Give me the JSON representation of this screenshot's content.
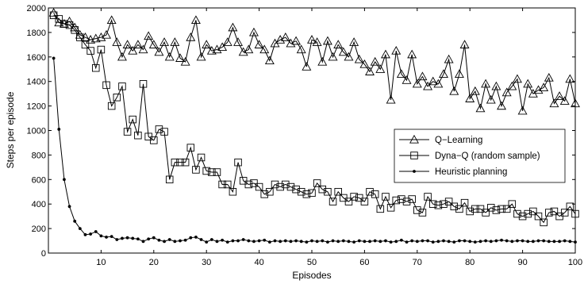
{
  "chart_data": {
    "type": "line",
    "title": "",
    "xlabel": "Episodes",
    "ylabel": "Steps per episode",
    "xlim": [
      0,
      100
    ],
    "ylim": [
      0,
      2000
    ],
    "xticks": [
      10,
      20,
      30,
      40,
      50,
      60,
      70,
      80,
      90,
      100
    ],
    "yticks": [
      0,
      200,
      400,
      600,
      800,
      1000,
      1200,
      1400,
      1600,
      1800,
      2000
    ],
    "grid": false,
    "legend_position": "center-right",
    "x": [
      1,
      2,
      3,
      4,
      5,
      6,
      7,
      8,
      9,
      10,
      11,
      12,
      13,
      14,
      15,
      16,
      17,
      18,
      19,
      20,
      21,
      22,
      23,
      24,
      25,
      26,
      27,
      28,
      29,
      30,
      31,
      32,
      33,
      34,
      35,
      36,
      37,
      38,
      39,
      40,
      41,
      42,
      43,
      44,
      45,
      46,
      47,
      48,
      49,
      50,
      51,
      52,
      53,
      54,
      55,
      56,
      57,
      58,
      59,
      60,
      61,
      62,
      63,
      64,
      65,
      66,
      67,
      68,
      69,
      70,
      71,
      72,
      73,
      74,
      75,
      76,
      77,
      78,
      79,
      80,
      81,
      82,
      83,
      84,
      85,
      86,
      87,
      88,
      89,
      90,
      91,
      92,
      93,
      94,
      95,
      96,
      97,
      98,
      99,
      100
    ],
    "series": [
      {
        "name": "Q−Learning",
        "marker": "triangle",
        "values": [
          1960,
          1880,
          1870,
          1890,
          1840,
          1780,
          1760,
          1740,
          1750,
          1760,
          1780,
          1900,
          1720,
          1600,
          1700,
          1650,
          1700,
          1660,
          1770,
          1700,
          1640,
          1720,
          1600,
          1720,
          1590,
          1560,
          1760,
          1900,
          1600,
          1700,
          1650,
          1660,
          1680,
          1720,
          1840,
          1720,
          1640,
          1660,
          1800,
          1700,
          1660,
          1570,
          1710,
          1740,
          1760,
          1710,
          1730,
          1660,
          1520,
          1740,
          1720,
          1560,
          1730,
          1600,
          1700,
          1640,
          1600,
          1720,
          1580,
          1540,
          1480,
          1560,
          1500,
          1620,
          1250,
          1650,
          1460,
          1410,
          1620,
          1380,
          1440,
          1360,
          1400,
          1380,
          1460,
          1580,
          1320,
          1460,
          1700,
          1260,
          1320,
          1180,
          1380,
          1250,
          1360,
          1200,
          1310,
          1360,
          1420,
          1160,
          1380,
          1300,
          1330,
          1350,
          1430,
          1220,
          1280,
          1240,
          1420,
          1220
        ]
      },
      {
        "name": "Dyna−Q (random sample)",
        "marker": "square",
        "values": [
          1940,
          1910,
          1870,
          1860,
          1820,
          1760,
          1700,
          1650,
          1510,
          1660,
          1370,
          1200,
          1270,
          1360,
          990,
          1090,
          960,
          1380,
          950,
          920,
          1010,
          990,
          600,
          740,
          740,
          740,
          860,
          680,
          780,
          670,
          660,
          660,
          560,
          560,
          500,
          740,
          590,
          560,
          570,
          540,
          480,
          500,
          560,
          540,
          560,
          540,
          520,
          500,
          480,
          490,
          570,
          520,
          500,
          420,
          500,
          450,
          420,
          460,
          450,
          420,
          500,
          480,
          360,
          460,
          370,
          430,
          440,
          420,
          440,
          350,
          330,
          460,
          400,
          390,
          400,
          420,
          380,
          360,
          410,
          340,
          360,
          360,
          330,
          370,
          350,
          360,
          360,
          400,
          320,
          300,
          320,
          340,
          300,
          250,
          330,
          340,
          300,
          330,
          380,
          320
        ]
      },
      {
        "name": "Heuristic planning",
        "marker": "dot",
        "values": [
          1590,
          1010,
          600,
          380,
          260,
          200,
          150,
          155,
          175,
          140,
          130,
          135,
          110,
          120,
          125,
          120,
          115,
          95,
          115,
          125,
          105,
          95,
          110,
          95,
          100,
          105,
          125,
          130,
          110,
          90,
          110,
          95,
          105,
          90,
          100,
          100,
          110,
          100,
          95,
          100,
          105,
          90,
          100,
          95,
          100,
          95,
          100,
          95,
          90,
          100,
          95,
          100,
          90,
          100,
          95,
          100,
          95,
          90,
          100,
          95,
          95,
          100,
          95,
          100,
          90,
          95,
          105,
          90,
          100,
          95,
          100,
          100,
          90,
          95,
          100,
          95,
          90,
          100,
          100,
          95,
          90,
          95,
          100,
          95,
          100,
          105,
          100,
          95,
          100,
          100,
          95,
          95,
          100,
          100,
          95,
          95,
          95,
          100,
          95,
          90
        ]
      }
    ]
  }
}
